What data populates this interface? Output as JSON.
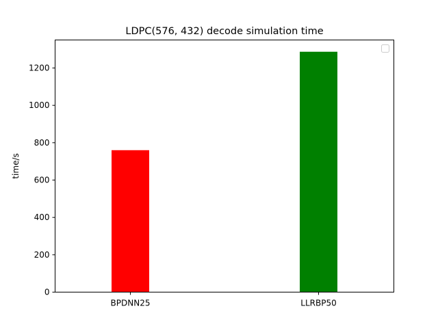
{
  "chart_data": {
    "type": "bar",
    "title": "LDPC(576, 432) decode simulation time",
    "xlabel": "",
    "ylabel": "time/s",
    "categories": [
      "BPDNN25",
      "LLRBP50"
    ],
    "values": [
      760,
      1287
    ],
    "colors": [
      "#ff0000",
      "#008000"
    ],
    "ylim": [
      0,
      1350
    ],
    "yticks": [
      0,
      200,
      400,
      600,
      800,
      1000,
      1200
    ],
    "grid": false,
    "legend": {
      "placement": "top-right",
      "entries": []
    }
  }
}
